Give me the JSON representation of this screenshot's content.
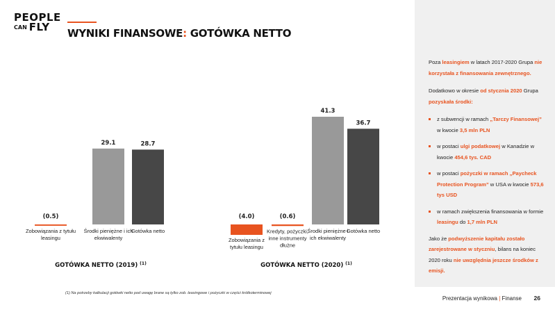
{
  "logo": {
    "line1": "PEOPLE",
    "line2_small": "CAN",
    "line2": "FLY"
  },
  "title": {
    "main": "WYNIKI FINANSOWE",
    "colon": ":",
    "sub": " GOTÓWKA NETTO"
  },
  "chart_data": [
    {
      "type": "bar",
      "title": "GOTÓWKA NETTO (2019)",
      "title_note": "(1)",
      "categories": [
        "Zobowiązania z tytułu leasingu",
        "Środki pieniężne i ich ekwiwalenty",
        "Gotówka netto"
      ],
      "category_lines": [
        [
          "Zobowiązania z tytułu",
          "leasingu"
        ],
        [
          "Środki pieniężne i ich",
          "ekwiwalenty"
        ],
        [
          "Gotówka netto"
        ]
      ],
      "values": [
        -0.5,
        29.1,
        28.7
      ],
      "value_labels": [
        "(0.5)",
        "29.1",
        "28.7"
      ],
      "colors": [
        "#e8531f",
        "#999999",
        "#474747"
      ]
    },
    {
      "type": "bar",
      "title": "GOTÓWKA NETTO (2020)",
      "title_note": "(1)",
      "categories": [
        "Zobowiązania z tytułu leasingu",
        "Kredyty, pożyczki, inne instrumenty dłużne",
        "Środki pieniężne i ich ekwiwalenty",
        "Gotówka netto"
      ],
      "category_lines": [
        [
          "Zobowiązania z",
          "tytułu leasingu"
        ],
        [
          "Kredyty, pożyczki,",
          "inne instrumenty",
          "dłużne"
        ],
        [
          "Środki pieniężne i",
          "ich ekwiwalenty"
        ],
        [
          "Gotówka netto"
        ]
      ],
      "values": [
        -4.0,
        -0.6,
        41.3,
        36.7
      ],
      "value_labels": [
        "(4.0)",
        "(0.6)",
        "41.3",
        "36.7"
      ],
      "colors": [
        "#e8531f",
        "#e8531f",
        "#999999",
        "#474747"
      ]
    }
  ],
  "footnote": "(1) Na potrzeby kalkulacji gotówki netto pod uwagę brane są tylko zob. leasingowe i pożyczki w części krótkoterminowej",
  "sidebar": {
    "p1": [
      {
        "t": "Poza ",
        "h": false
      },
      {
        "t": "leasingiem",
        "h": true
      },
      {
        "t": " w latach 2017-2020 Grupa ",
        "h": false
      },
      {
        "t": "nie korzystała z finansowania zewnętrznego.",
        "h": true
      }
    ],
    "p2": [
      {
        "t": "Dodatkowo w okresie ",
        "h": false
      },
      {
        "t": "od stycznia 2020",
        "h": true
      },
      {
        "t": " Grupa ",
        "h": false
      },
      {
        "t": "pozyskała środki:",
        "h": true
      }
    ],
    "bullets": [
      [
        {
          "t": "z subwencji w ramach ",
          "h": false
        },
        {
          "t": "„Tarczy Finansowej”",
          "h": true
        },
        {
          "t": " w kwocie ",
          "h": false
        },
        {
          "t": "3,5 mln PLN",
          "h": true
        }
      ],
      [
        {
          "t": "w postaci ",
          "h": false
        },
        {
          "t": "ulgi podatkowej",
          "h": true
        },
        {
          "t": " w Kanadzie w kwocie ",
          "h": false
        },
        {
          "t": "454,6 tys. CAD",
          "h": true
        }
      ],
      [
        {
          "t": "w postaci ",
          "h": false
        },
        {
          "t": "pożyczki w ramach „Paycheck Protection Program”",
          "h": true
        },
        {
          "t": " w USA w kwocie ",
          "h": false
        },
        {
          "t": "573,6 tys USD",
          "h": true
        }
      ],
      [
        {
          "t": "w ramach zwiększenia finansowania w formie ",
          "h": false
        },
        {
          "t": "leasingu",
          "h": true
        },
        {
          "t": " do ",
          "h": false
        },
        {
          "t": "1,7 mln PLN",
          "h": true
        }
      ]
    ],
    "p3": [
      {
        "t": "Jako że ",
        "h": false
      },
      {
        "t": "podwyższenie kapitału zostało zarejestrowane w styczniu",
        "h": true
      },
      {
        "t": ", bilans na koniec 2020 roku ",
        "h": false
      },
      {
        "t": "nie uwzględnia jeszcze środków z emisji.",
        "h": true
      }
    ]
  },
  "footer": {
    "label": "Prezentacja wynikowa",
    "sep": "|",
    "section": "Finanse",
    "page": "26"
  }
}
